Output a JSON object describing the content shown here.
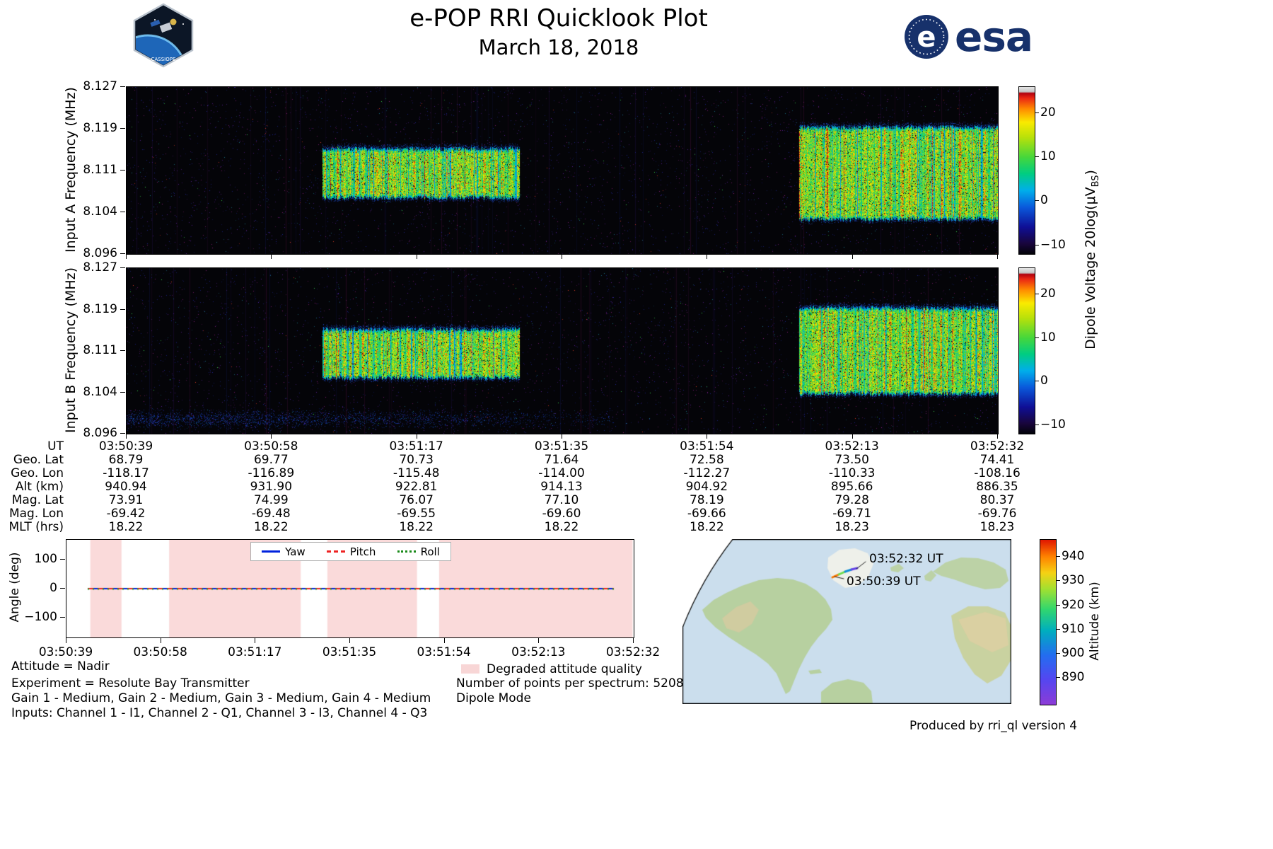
{
  "header": {
    "title": "e-POP RRI Quicklook Plot",
    "subtitle": "March 18, 2018",
    "esa_wordmark": "esa",
    "esa_e": "e",
    "patch_label": "CASSIOPE"
  },
  "spectrograms": {
    "panel_a_ylabel": "Input A Frequency (MHz)",
    "panel_b_ylabel": "Input B Frequency (MHz)",
    "freq_tick_labels": [
      "8.127",
      "8.119",
      "8.111",
      "8.104",
      "8.096"
    ],
    "colorbar_tick_labels": [
      "20",
      "10",
      "0",
      "−10"
    ],
    "colorbar_label_prefix": "Dipole Voltage ",
    "colorbar_label_math": "20log(μV",
    "colorbar_label_sub": "BS",
    "colorbar_label_close": ")"
  },
  "attitude": {
    "ylabel": "Angle (deg)",
    "ytick_labels": [
      "100",
      "0",
      "−100"
    ],
    "legend": [
      {
        "label": "Yaw",
        "color": "#0022dd",
        "style": "solid"
      },
      {
        "label": "Pitch",
        "color": "#ee2222",
        "style": "dashed"
      },
      {
        "label": "Roll",
        "color": "#1a8a1a",
        "style": "dotted"
      }
    ]
  },
  "footer": {
    "attitude_line": "Attitude = Nadir",
    "experiment_line": "Experiment = Resolute Bay Transmitter",
    "gain_line": "Gain 1 - Medium, Gain 2 - Medium, Gain 3 - Medium, Gain 4 - Medium",
    "inputs_line": "Inputs: Channel 1 - I1, Channel 2 - Q1, Channel 3 - I3, Channel 4 - Q3",
    "degraded_label": "Degraded attitude quality",
    "points_line": "Number of points per spectrum: 5208",
    "mode_line": "Dipole Mode",
    "produced_line": "Produced by rri_ql version 4"
  },
  "map": {
    "label_end": "03:52:32 UT",
    "label_start": "03:50:39 UT",
    "alt_colorbar_label": "Altitude (km)",
    "alt_colorbar_tick_labels": [
      "940",
      "930",
      "920",
      "910",
      "900",
      "890"
    ]
  },
  "chart_data": [
    {
      "type": "heatmap",
      "title": "Input A spectrogram",
      "ylabel": "Input A Frequency (MHz)",
      "ylim": [
        8.096,
        8.127
      ],
      "yticks": [
        8.127,
        8.119,
        8.111,
        8.104,
        8.096
      ],
      "x_ut_range": [
        "03:50:39",
        "03:52:32"
      ],
      "colorbar": {
        "label": "Dipole Voltage 20log(uV_BS)",
        "ticks": [
          20,
          10,
          0,
          -10
        ],
        "vmin": -12,
        "vmax": 26
      },
      "bursts": [
        {
          "t_frac": [
            0.225,
            0.452
          ],
          "freq_mhz": [
            8.1065,
            8.1155
          ]
        },
        {
          "t_frac": [
            0.772,
            1.0
          ],
          "freq_mhz": [
            8.1025,
            8.1195
          ]
        }
      ]
    },
    {
      "type": "heatmap",
      "title": "Input B spectrogram",
      "ylabel": "Input B Frequency (MHz)",
      "ylim": [
        8.096,
        8.127
      ],
      "yticks": [
        8.127,
        8.119,
        8.111,
        8.104,
        8.096
      ],
      "x_ut_range": [
        "03:50:39",
        "03:52:32"
      ],
      "colorbar": {
        "label": "Dipole Voltage 20log(uV_BS)",
        "ticks": [
          20,
          10,
          0,
          -10
        ],
        "vmin": -12,
        "vmax": 26
      },
      "bursts": [
        {
          "t_frac": [
            0.225,
            0.452
          ],
          "freq_mhz": [
            8.1065,
            8.1155
          ]
        },
        {
          "t_frac": [
            0.772,
            1.0
          ],
          "freq_mhz": [
            8.1035,
            8.1195
          ]
        }
      ],
      "noise_band": {
        "t_frac": [
          0.0,
          0.56
        ],
        "freq_mhz": [
          8.0965,
          8.101
        ]
      }
    },
    {
      "type": "line",
      "title": "Attitude angles",
      "ylabel": "Angle (deg)",
      "ylim": [
        -170,
        170
      ],
      "yticks": [
        100,
        0,
        -100
      ],
      "x_ut_ticks": [
        "03:50:39",
        "03:50:58",
        "03:51:17",
        "03:51:35",
        "03:51:54",
        "03:52:13",
        "03:52:32"
      ],
      "series": [
        {
          "name": "Yaw",
          "value": 0
        },
        {
          "name": "Pitch",
          "value": 0
        },
        {
          "name": "Roll",
          "value": 0
        }
      ],
      "degraded_bands_t_frac": [
        [
          0.042,
          0.097
        ],
        [
          0.181,
          0.413
        ],
        [
          0.46,
          0.618
        ],
        [
          0.657,
          0.998
        ]
      ]
    },
    {
      "type": "table",
      "title": "Ephemeris",
      "rows": [
        {
          "label": "UT",
          "values": [
            "03:50:39",
            "03:50:58",
            "03:51:17",
            "03:51:35",
            "03:51:54",
            "03:52:13",
            "03:52:32"
          ]
        },
        {
          "label": "Geo. Lat",
          "values": [
            "68.79",
            "69.77",
            "70.73",
            "71.64",
            "72.58",
            "73.50",
            "74.41"
          ]
        },
        {
          "label": "Geo. Lon",
          "values": [
            "-118.17",
            "-116.89",
            "-115.48",
            "-114.00",
            "-112.27",
            "-110.33",
            "-108.16"
          ]
        },
        {
          "label": "Alt (km)",
          "values": [
            "940.94",
            "931.90",
            "922.81",
            "914.13",
            "904.92",
            "895.66",
            "886.35"
          ]
        },
        {
          "label": "Mag. Lat",
          "values": [
            "73.91",
            "74.99",
            "76.07",
            "77.10",
            "78.19",
            "79.28",
            "80.37"
          ]
        },
        {
          "label": "Mag. Lon",
          "values": [
            "-69.42",
            "-69.48",
            "-69.55",
            "-69.60",
            "-69.66",
            "-69.71",
            "-69.76"
          ]
        },
        {
          "label": "MLT (hrs)",
          "values": [
            "18.22",
            "18.22",
            "18.22",
            "18.22",
            "18.22",
            "18.23",
            "18.23"
          ]
        }
      ]
    },
    {
      "type": "map",
      "title": "Ground track",
      "track_start": {
        "ut": "03:50:39",
        "geo_lat": 68.79,
        "geo_lon": -118.17,
        "alt_km": 940.94
      },
      "track_end": {
        "ut": "03:52:32",
        "geo_lat": 74.41,
        "geo_lon": -108.16,
        "alt_km": 886.35
      },
      "alt_colorbar": {
        "label": "Altitude (km)",
        "ticks": [
          940,
          930,
          920,
          910,
          900,
          890
        ],
        "vmin": 879,
        "vmax": 947
      }
    }
  ]
}
